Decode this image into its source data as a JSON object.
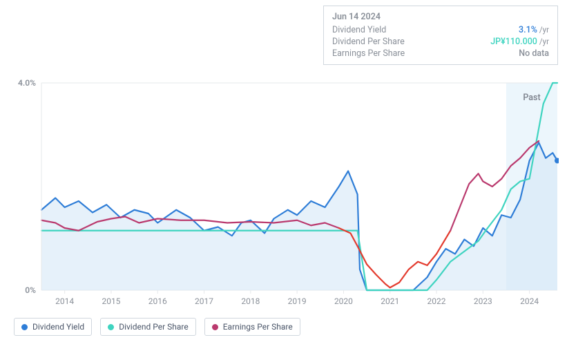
{
  "tooltip": {
    "date": "Jun 14 2024",
    "rows": [
      {
        "label": "Dividend Yield",
        "value": "3.1%",
        "unit": "/yr",
        "color": "#2e7dd7"
      },
      {
        "label": "Dividend Per Share",
        "value": "JP¥110.000",
        "unit": "/yr",
        "color": "#3fd4c0"
      },
      {
        "label": "Earnings Per Share",
        "value": "No data",
        "unit": "",
        "color": "#8a9099"
      }
    ]
  },
  "past_label": "Past",
  "chart": {
    "type": "line",
    "background_color": "#ffffff",
    "grid_color": "#e6e8eb",
    "axis_color": "#e6e8eb",
    "forecast_band_color": "#dceefa",
    "forecast_band_opacity": 0.55,
    "ylim": [
      0,
      4.0
    ],
    "yticks": [
      {
        "v": 0,
        "label": "0%"
      },
      {
        "v": 4.0,
        "label": "4.0%"
      }
    ],
    "xlim": [
      2013.5,
      2024.6
    ],
    "xticks": [
      2014,
      2015,
      2016,
      2017,
      2018,
      2019,
      2020,
      2021,
      2022,
      2023,
      2024
    ],
    "forecast_start_x": 2023.5,
    "series": [
      {
        "name": "Dividend Yield",
        "color": "#2e7dd7",
        "fill_color": "#d6e7f6",
        "fill_opacity": 0.6,
        "line_width": 2.2,
        "fill": true,
        "points": [
          [
            2013.5,
            1.55
          ],
          [
            2013.8,
            1.78
          ],
          [
            2014.0,
            1.6
          ],
          [
            2014.3,
            1.72
          ],
          [
            2014.6,
            1.5
          ],
          [
            2014.9,
            1.65
          ],
          [
            2015.2,
            1.4
          ],
          [
            2015.5,
            1.55
          ],
          [
            2015.8,
            1.48
          ],
          [
            2016.0,
            1.3
          ],
          [
            2016.4,
            1.55
          ],
          [
            2016.7,
            1.4
          ],
          [
            2017.0,
            1.15
          ],
          [
            2017.3,
            1.22
          ],
          [
            2017.6,
            1.05
          ],
          [
            2017.8,
            1.3
          ],
          [
            2018.0,
            1.35
          ],
          [
            2018.3,
            1.1
          ],
          [
            2018.5,
            1.38
          ],
          [
            2018.8,
            1.55
          ],
          [
            2019.0,
            1.45
          ],
          [
            2019.3,
            1.72
          ],
          [
            2019.6,
            1.6
          ],
          [
            2019.9,
            2.0
          ],
          [
            2020.1,
            2.3
          ],
          [
            2020.3,
            1.85
          ],
          [
            2020.35,
            0.4
          ],
          [
            2020.5,
            0.0
          ],
          [
            2020.8,
            0.0
          ],
          [
            2021.0,
            0.0
          ],
          [
            2021.5,
            0.0
          ],
          [
            2021.8,
            0.25
          ],
          [
            2022.0,
            0.55
          ],
          [
            2022.2,
            0.8
          ],
          [
            2022.4,
            0.7
          ],
          [
            2022.6,
            0.98
          ],
          [
            2022.8,
            0.85
          ],
          [
            2023.0,
            1.2
          ],
          [
            2023.2,
            1.05
          ],
          [
            2023.4,
            1.45
          ],
          [
            2023.6,
            1.4
          ],
          [
            2023.8,
            1.75
          ],
          [
            2024.0,
            2.5
          ],
          [
            2024.2,
            2.85
          ],
          [
            2024.35,
            2.55
          ],
          [
            2024.5,
            2.65
          ],
          [
            2024.6,
            2.5
          ]
        ],
        "end_dot": [
          2024.6,
          2.5
        ]
      },
      {
        "name": "Dividend Per Share",
        "color": "#3fd4c0",
        "line_width": 2.2,
        "fill": false,
        "points": [
          [
            2013.5,
            1.15
          ],
          [
            2014.0,
            1.15
          ],
          [
            2015.0,
            1.15
          ],
          [
            2016.0,
            1.15
          ],
          [
            2017.0,
            1.15
          ],
          [
            2018.0,
            1.15
          ],
          [
            2019.0,
            1.15
          ],
          [
            2020.0,
            1.15
          ],
          [
            2020.3,
            1.15
          ],
          [
            2020.5,
            0.0
          ],
          [
            2020.8,
            0.0
          ],
          [
            2021.0,
            0.0
          ],
          [
            2021.5,
            0.0
          ],
          [
            2021.8,
            0.0
          ],
          [
            2022.0,
            0.2
          ],
          [
            2022.3,
            0.55
          ],
          [
            2022.6,
            0.75
          ],
          [
            2022.9,
            0.95
          ],
          [
            2023.1,
            1.2
          ],
          [
            2023.4,
            1.55
          ],
          [
            2023.6,
            1.95
          ],
          [
            2023.8,
            2.1
          ],
          [
            2024.0,
            2.15
          ],
          [
            2024.3,
            3.6
          ],
          [
            2024.5,
            4.0
          ],
          [
            2024.6,
            4.0
          ]
        ]
      },
      {
        "name": "Earnings Per Share",
        "color": "#ba3a6e",
        "negative_color": "#e33b2e",
        "line_width": 2.2,
        "fill": false,
        "points": [
          [
            2013.5,
            1.35
          ],
          [
            2013.8,
            1.3
          ],
          [
            2014.0,
            1.2
          ],
          [
            2014.3,
            1.15
          ],
          [
            2014.7,
            1.32
          ],
          [
            2015.0,
            1.38
          ],
          [
            2015.3,
            1.42
          ],
          [
            2015.6,
            1.3
          ],
          [
            2016.0,
            1.38
          ],
          [
            2016.5,
            1.35
          ],
          [
            2017.0,
            1.35
          ],
          [
            2017.5,
            1.3
          ],
          [
            2018.0,
            1.32
          ],
          [
            2018.5,
            1.3
          ],
          [
            2019.0,
            1.35
          ],
          [
            2019.3,
            1.25
          ],
          [
            2019.6,
            1.3
          ],
          [
            2019.9,
            1.2
          ],
          [
            2020.15,
            1.1
          ],
          [
            2020.3,
            0.85
          ],
          [
            2020.5,
            0.5
          ],
          [
            2020.7,
            0.3
          ],
          [
            2020.9,
            0.12
          ],
          [
            2021.0,
            0.05
          ],
          [
            2021.2,
            0.15
          ],
          [
            2021.4,
            0.4
          ],
          [
            2021.6,
            0.55
          ],
          [
            2021.8,
            0.48
          ],
          [
            2022.0,
            0.7
          ],
          [
            2022.3,
            1.15
          ],
          [
            2022.5,
            1.6
          ],
          [
            2022.7,
            2.05
          ],
          [
            2022.9,
            2.25
          ],
          [
            2023.0,
            2.1
          ],
          [
            2023.2,
            2.0
          ],
          [
            2023.4,
            2.15
          ],
          [
            2023.6,
            2.4
          ],
          [
            2023.8,
            2.55
          ],
          [
            2024.0,
            2.75
          ],
          [
            2024.2,
            2.88
          ]
        ],
        "negative_range": [
          2020.15,
          2022.3
        ]
      }
    ]
  },
  "legend": [
    {
      "label": "Dividend Yield",
      "color": "#2e7dd7"
    },
    {
      "label": "Dividend Per Share",
      "color": "#3fd4c0"
    },
    {
      "label": "Earnings Per Share",
      "color": "#ba3a6e"
    }
  ]
}
